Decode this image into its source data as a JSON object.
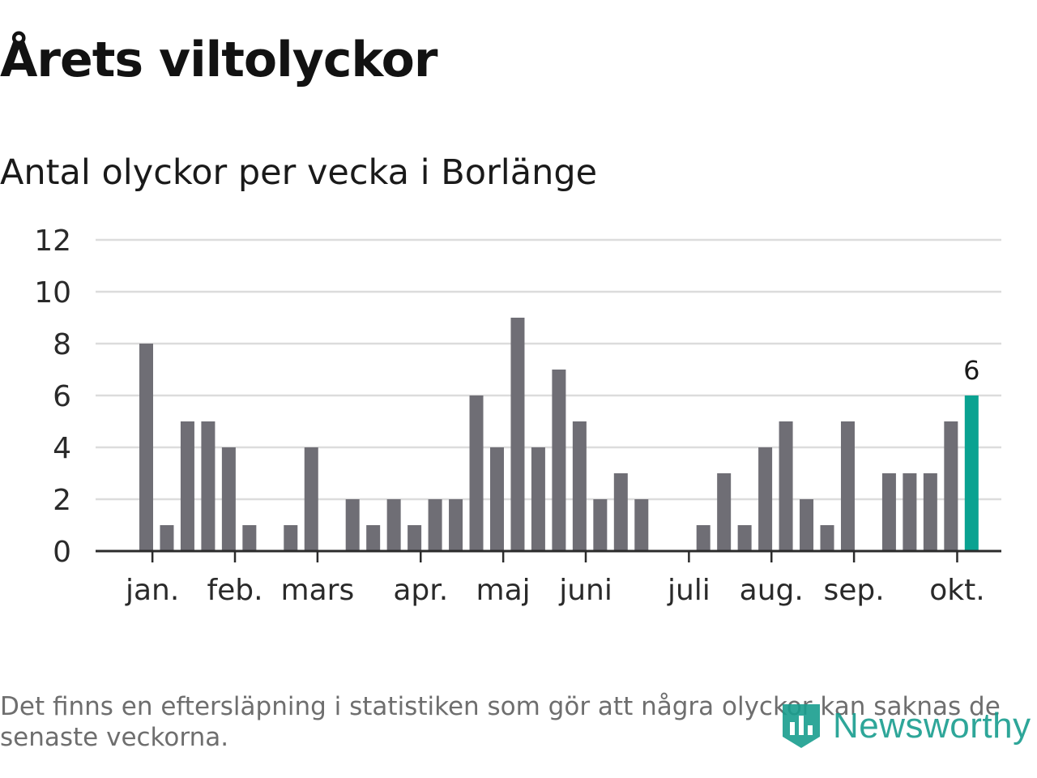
{
  "title": "Årets viltolyckor",
  "subtitle": "Antal olyckor per vecka i Borlänge",
  "footnote": "Det finns en eftersläpning i statistiken som gör att några olyckor kan saknas de senaste veckorna.",
  "brand": {
    "name": "Newsworthy",
    "icon": "bar-chart-shield-icon",
    "color": "#189d8e"
  },
  "colors": {
    "bar": "#6f6e75",
    "highlight": "#0aa291",
    "grid": "#dcdcdc",
    "axis": "#2b2b2b"
  },
  "chart_data": {
    "type": "bar",
    "title": "Antal olyckor per vecka i Borlänge",
    "xlabel": "",
    "ylabel": "",
    "ylim": [
      0,
      12
    ],
    "yticks": [
      0,
      2,
      4,
      6,
      8,
      10,
      12
    ],
    "grid": true,
    "values": [
      8,
      1,
      5,
      5,
      4,
      1,
      0,
      1,
      4,
      0,
      2,
      1,
      2,
      1,
      2,
      2,
      6,
      4,
      9,
      4,
      7,
      5,
      2,
      3,
      2,
      0,
      0,
      1,
      3,
      1,
      4,
      5,
      2,
      1,
      5,
      0,
      3,
      3,
      3,
      5,
      6
    ],
    "highlight_index": 40,
    "highlight_label": "6",
    "month_ticks": [
      {
        "label": "jan.",
        "week_index": 0.3
      },
      {
        "label": "feb.",
        "week_index": 4.3
      },
      {
        "label": "mars",
        "week_index": 8.3
      },
      {
        "label": "apr.",
        "week_index": 13.3
      },
      {
        "label": "maj",
        "week_index": 17.3
      },
      {
        "label": "juni",
        "week_index": 21.3
      },
      {
        "label": "juli",
        "week_index": 26.3
      },
      {
        "label": "aug.",
        "week_index": 30.3
      },
      {
        "label": "sep.",
        "week_index": 34.3
      },
      {
        "label": "okt.",
        "week_index": 39.3
      }
    ]
  }
}
